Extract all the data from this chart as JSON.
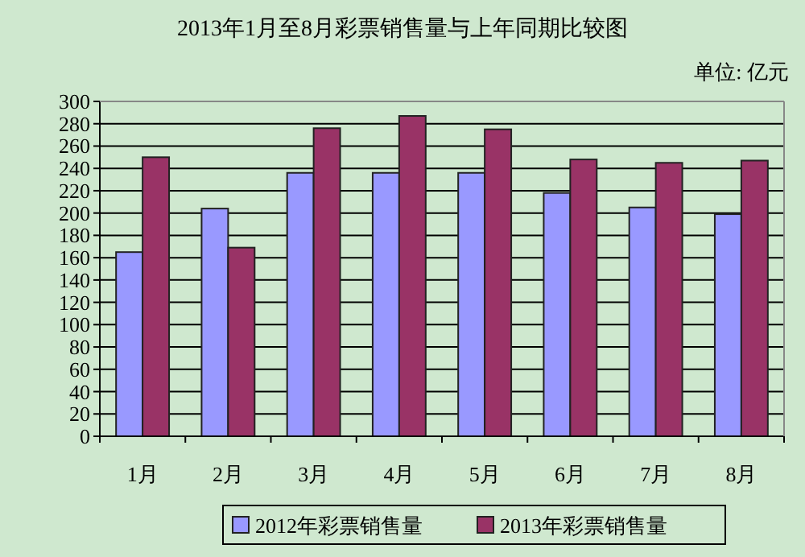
{
  "chart_data": {
    "type": "bar",
    "title": "2013年1月至8月彩票销售量与上年同期比较图",
    "annotations": [
      "单位: 亿元"
    ],
    "categories": [
      "1月",
      "2月",
      "3月",
      "4月",
      "5月",
      "6月",
      "7月",
      "8月"
    ],
    "series": [
      {
        "name": "2012年彩票销售量",
        "color": "#9999ff",
        "values": [
          165,
          204,
          236,
          236,
          236,
          218,
          205,
          199
        ]
      },
      {
        "name": "2013年彩票销售量",
        "color": "#993366",
        "values": [
          250,
          169,
          276,
          287,
          275,
          248,
          245,
          247
        ]
      }
    ],
    "ylim": [
      0,
      300
    ],
    "yticks": [
      0,
      20,
      40,
      60,
      80,
      100,
      120,
      140,
      160,
      180,
      200,
      220,
      240,
      260,
      280,
      300
    ],
    "grid": "y",
    "legend": "bottom"
  }
}
